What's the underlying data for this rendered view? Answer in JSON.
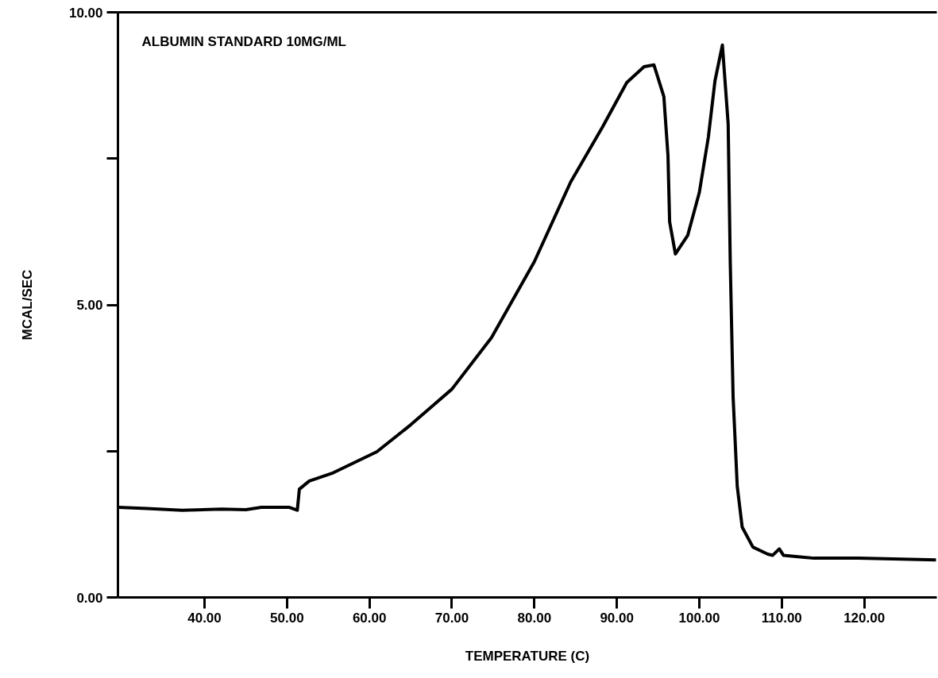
{
  "chart_data": {
    "type": "line",
    "xlabel": "TEMPERATURE (C)",
    "ylabel": "MCAL/SEC",
    "annotations": [
      "ALBUMIN STANDARD 10MG/ML"
    ],
    "xlim": [
      29.5,
      128.8
    ],
    "ylim": [
      0,
      10
    ],
    "xticks": [
      {
        "value": 40,
        "label": "40.00"
      },
      {
        "value": 50,
        "label": "50.00"
      },
      {
        "value": 60,
        "label": "60.00"
      },
      {
        "value": 70,
        "label": "70.00"
      },
      {
        "value": 80,
        "label": "80.00"
      },
      {
        "value": 90,
        "label": "90.00"
      },
      {
        "value": 100,
        "label": "100.00"
      },
      {
        "value": 110,
        "label": "110.00"
      },
      {
        "value": 120,
        "label": "120.00"
      }
    ],
    "yticks": [
      {
        "value": 0,
        "label": "0.00"
      },
      {
        "value": 2.5,
        "label": null
      },
      {
        "value": 5,
        "label": "5.00"
      },
      {
        "value": 7.5,
        "label": null
      },
      {
        "value": 10,
        "label": "10.00"
      }
    ],
    "grid": false,
    "marker": "none",
    "line_style": "solid",
    "x": [
      29.5,
      33,
      37.3,
      42.1,
      45,
      46.9,
      50.3,
      51.25,
      51.5,
      52.7,
      55.6,
      60.9,
      65,
      70,
      74.8,
      80,
      84.4,
      88.3,
      91.2,
      93.3,
      94.5,
      95.7,
      96.2,
      96.4,
      97.1,
      98.6,
      100.0,
      101.1,
      101.9,
      102.8,
      103.5,
      103.75,
      104.1,
      104.6,
      105.2,
      106.5,
      108.3,
      108.9,
      109.7,
      110.2,
      113.9,
      119.3,
      128.7
    ],
    "series": [
      {
        "color": "#000000",
        "values": [
          1.54,
          1.52,
          1.49,
          1.51,
          1.5,
          1.54,
          1.54,
          1.49,
          1.85,
          1.99,
          2.13,
          2.49,
          2.95,
          3.56,
          4.44,
          5.74,
          7.1,
          8.05,
          8.8,
          9.07,
          9.1,
          8.56,
          7.55,
          6.42,
          5.87,
          6.19,
          6.92,
          7.87,
          8.83,
          9.44,
          8.09,
          5.74,
          3.42,
          1.9,
          1.2,
          0.86,
          0.74,
          0.72,
          0.83,
          0.72,
          0.67,
          0.67,
          0.64
        ]
      }
    ]
  }
}
